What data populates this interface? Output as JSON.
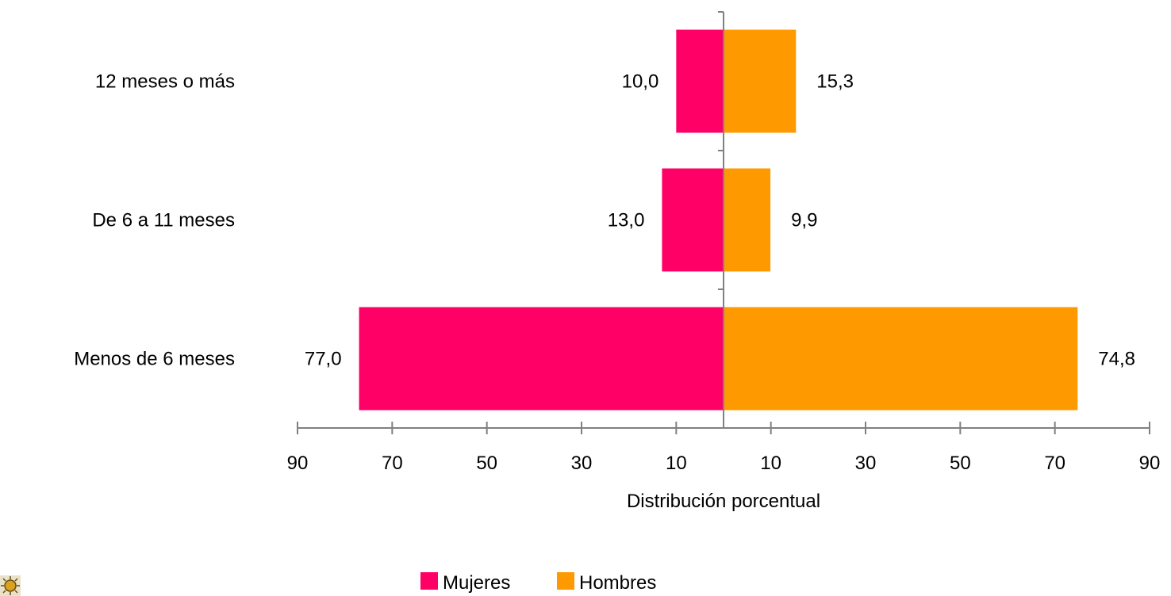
{
  "chart_data": {
    "type": "bar",
    "orientation": "horizontal",
    "layout": "diverging",
    "categories": [
      "12 meses o más",
      "De 6 a 11 meses",
      "Menos de 6 meses"
    ],
    "series": [
      {
        "name": "Mujeres",
        "color": "#FF0066",
        "side": "left",
        "values": [
          10.0,
          13.0,
          77.0
        ],
        "labels": [
          "10,0",
          "13,0",
          "77,0"
        ]
      },
      {
        "name": "Hombres",
        "color": "#FF9900",
        "side": "right",
        "values": [
          15.3,
          9.9,
          74.8
        ],
        "labels": [
          "15,3",
          "9,9",
          "74,8"
        ]
      }
    ],
    "xlabel": "Distribución porcentual",
    "ylabel": "",
    "xlim": [
      -90,
      90
    ],
    "x_tick_values": [
      -90,
      -70,
      -50,
      -30,
      -10,
      10,
      30,
      50,
      70,
      90
    ],
    "x_tick_labels": [
      "90",
      "70",
      "50",
      "30",
      "10",
      "10",
      "30",
      "50",
      "70",
      "90"
    ],
    "legend_position": "bottom",
    "grid": false
  },
  "colors": {
    "axis": "#808080",
    "mujeres": "#FF0066",
    "hombres": "#FF9900"
  },
  "logo_icon": "sun-emblem-icon"
}
